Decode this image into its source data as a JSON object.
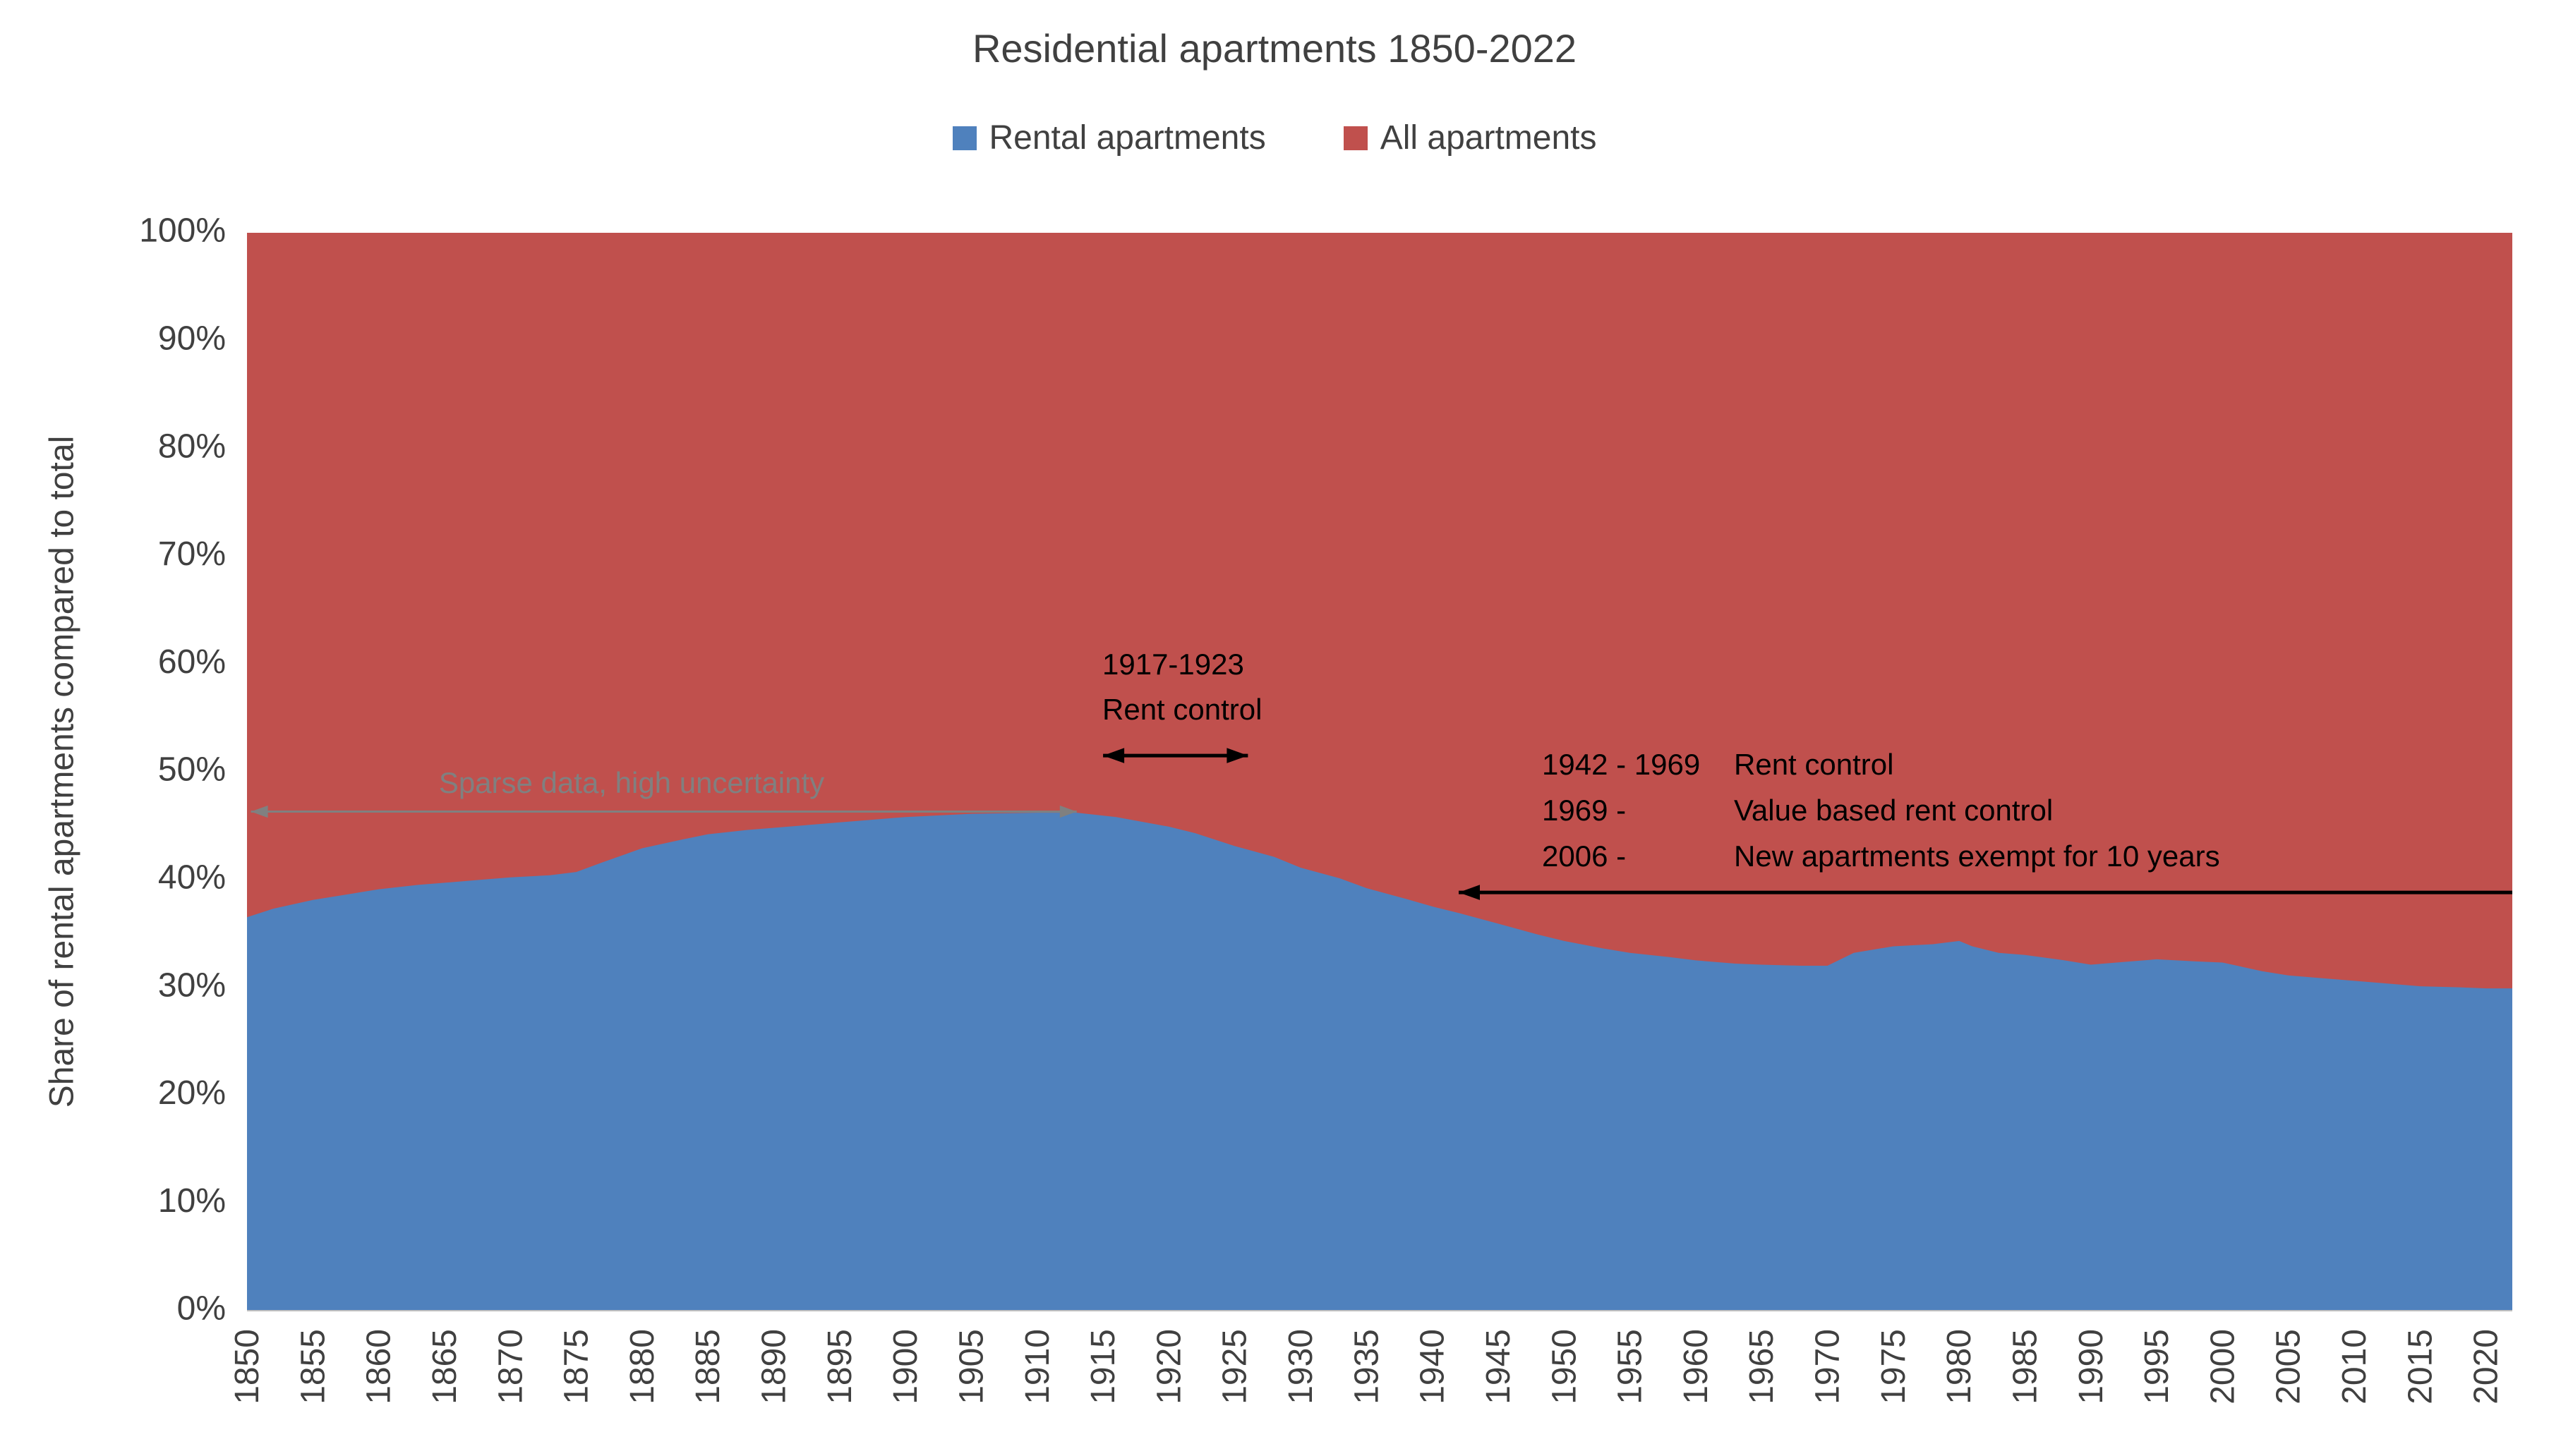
{
  "chart_data": {
    "type": "area",
    "stacked": "100%",
    "title": "Residential apartments 1850-2022",
    "ylabel": "Share of rental apartments compared to total",
    "xlabel": "",
    "legend_position": "top",
    "ylim": [
      0,
      100
    ],
    "x_range": [
      1850,
      2022
    ],
    "x_ticks": [
      1850,
      1855,
      1860,
      1865,
      1870,
      1875,
      1880,
      1885,
      1890,
      1895,
      1900,
      1905,
      1910,
      1915,
      1920,
      1925,
      1930,
      1935,
      1940,
      1945,
      1950,
      1955,
      1960,
      1965,
      1970,
      1975,
      1980,
      1985,
      1990,
      1995,
      2000,
      2005,
      2010,
      2015,
      2020
    ],
    "y_ticks_percent": [
      0,
      10,
      20,
      30,
      40,
      50,
      60,
      70,
      80,
      90,
      100
    ],
    "series": [
      {
        "name": "Rental apartments",
        "color": "#4F81BD",
        "role": "share-of-total"
      },
      {
        "name": "All apartments",
        "color": "#C0504D",
        "role": "remainder-to-100%"
      }
    ],
    "rental_share_points": [
      [
        1850,
        36.5
      ],
      [
        1852,
        37.3
      ],
      [
        1855,
        38.1
      ],
      [
        1858,
        38.7
      ],
      [
        1860,
        39.1
      ],
      [
        1863,
        39.5
      ],
      [
        1865,
        39.7
      ],
      [
        1868,
        40.0
      ],
      [
        1870,
        40.2
      ],
      [
        1873,
        40.4
      ],
      [
        1875,
        40.7
      ],
      [
        1877,
        41.6
      ],
      [
        1880,
        42.9
      ],
      [
        1883,
        43.7
      ],
      [
        1885,
        44.2
      ],
      [
        1888,
        44.6
      ],
      [
        1890,
        44.8
      ],
      [
        1893,
        45.1
      ],
      [
        1895,
        45.3
      ],
      [
        1898,
        45.6
      ],
      [
        1900,
        45.8
      ],
      [
        1905,
        46.1
      ],
      [
        1910,
        46.2
      ],
      [
        1913,
        46.2
      ],
      [
        1916,
        45.8
      ],
      [
        1920,
        44.9
      ],
      [
        1922,
        44.3
      ],
      [
        1925,
        43.1
      ],
      [
        1928,
        42.1
      ],
      [
        1930,
        41.1
      ],
      [
        1933,
        40.1
      ],
      [
        1935,
        39.2
      ],
      [
        1938,
        38.2
      ],
      [
        1940,
        37.5
      ],
      [
        1942,
        36.9
      ],
      [
        1945,
        35.9
      ],
      [
        1948,
        34.9
      ],
      [
        1950,
        34.3
      ],
      [
        1953,
        33.6
      ],
      [
        1955,
        33.2
      ],
      [
        1958,
        32.8
      ],
      [
        1960,
        32.5
      ],
      [
        1963,
        32.2
      ],
      [
        1965,
        32.1
      ],
      [
        1968,
        32.0
      ],
      [
        1970,
        32.0
      ],
      [
        1972,
        33.2
      ],
      [
        1975,
        33.8
      ],
      [
        1978,
        34.0
      ],
      [
        1980,
        34.3
      ],
      [
        1981,
        33.8
      ],
      [
        1983,
        33.2
      ],
      [
        1985,
        33.0
      ],
      [
        1988,
        32.5
      ],
      [
        1990,
        32.1
      ],
      [
        1993,
        32.4
      ],
      [
        1995,
        32.6
      ],
      [
        1998,
        32.4
      ],
      [
        2000,
        32.3
      ],
      [
        2003,
        31.5
      ],
      [
        2005,
        31.1
      ],
      [
        2008,
        30.8
      ],
      [
        2010,
        30.6
      ],
      [
        2013,
        30.3
      ],
      [
        2015,
        30.1
      ],
      [
        2018,
        30.0
      ],
      [
        2020,
        29.9
      ],
      [
        2022,
        29.9
      ]
    ],
    "annotations": [
      {
        "id": "sparse-data",
        "text": "Sparse data, high uncertainty",
        "color": "#808080",
        "arrow": {
          "style": "double",
          "from_year": 1850.3,
          "to_year": 1913,
          "at_percent": 46.3
        }
      },
      {
        "id": "rent-control-1917",
        "line1": "1917-1923",
        "line2": "Rent control",
        "color": "#000000",
        "arrow": {
          "style": "double",
          "from_year": 1915,
          "to_year": 1926,
          "at_percent": 51.5
        }
      },
      {
        "id": "rent-control-history",
        "rows": [
          {
            "period": "1942 - 1969",
            "text": "Rent control"
          },
          {
            "period": "1969 -",
            "text": "Value based rent control"
          },
          {
            "period": "2006 -",
            "text": "New apartments exempt for 10 years"
          }
        ],
        "color": "#000000",
        "arrow": {
          "style": "left",
          "from_year": 1942,
          "to_year": 2022.3,
          "at_percent": 38.8
        }
      }
    ]
  }
}
